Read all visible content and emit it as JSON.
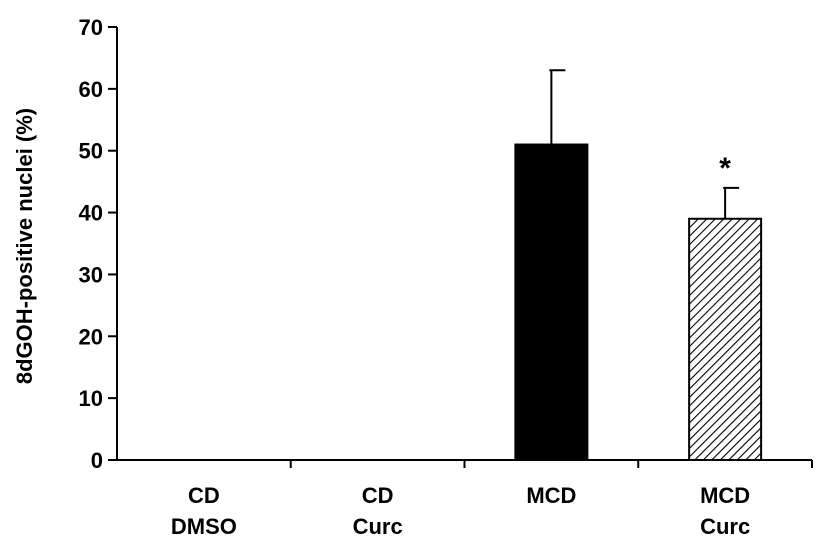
{
  "chart_data": {
    "type": "bar",
    "categories": [
      [
        "CD",
        "DMSO"
      ],
      [
        "CD",
        "Curc"
      ],
      [
        "MCD"
      ],
      [
        "MCD",
        "Curc"
      ]
    ],
    "values": [
      0,
      0,
      51,
      39
    ],
    "errors": [
      0,
      0,
      12,
      5
    ],
    "bar_fills": [
      "none",
      "none",
      "solid-black",
      "diagonal-hatch"
    ],
    "annotations": [
      {
        "category_index": 3,
        "text": "*"
      }
    ],
    "title": "",
    "xlabel": "",
    "ylabel": "8dGOH-positive nuclei (%)",
    "ylim": [
      0,
      70
    ],
    "yticks": [
      0,
      10,
      20,
      30,
      40,
      50,
      60,
      70
    ],
    "grid": false,
    "legend": "none",
    "colors": {
      "bar": "#000000",
      "hatch_bg": "#ffffff",
      "axis": "#000000"
    }
  }
}
